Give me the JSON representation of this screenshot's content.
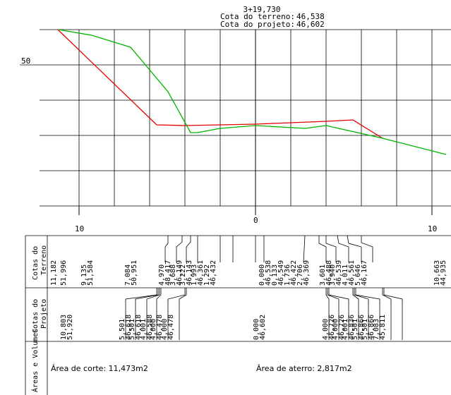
{
  "header": {
    "station": "3+19,730",
    "terrain_label": "Cota do terreno:",
    "terrain_value": "46,538",
    "project_label": "Cota do projeto:",
    "project_value": "46,602"
  },
  "y_axis_label": "50",
  "x_axis_labels": {
    "left": "10",
    "center": "0",
    "right": "10"
  },
  "row_titles": {
    "terrain": [
      "Cotas do",
      "Terreno"
    ],
    "project": [
      "Cotas do",
      "Projeto"
    ],
    "areas": "Áreas e Volumes"
  },
  "terrain_values": [
    "11,182",
    "51,996",
    "9,135",
    "51,584",
    "7,084",
    "50,951",
    "4,970",
    "48,417",
    "3,688",
    "46,149",
    "3,222",
    "46,143",
    "1,993",
    "46,361",
    "1,292",
    "46,432",
    "0,000",
    "46,538",
    "0,133",
    "46,549",
    "1,736",
    "46,422",
    "2,706",
    "46,369",
    "3,601",
    "46,488",
    "3,940",
    "46,539",
    "4,011",
    "46,561",
    "5,646",
    "46,167",
    "10,663",
    "44,935"
  ],
  "project_values": [
    "10,803",
    "51,920",
    "5,501",
    "46,618",
    "5,501",
    "46,618",
    "4,001",
    "46,588",
    "4,000",
    "46,478",
    "4,000",
    "46,478",
    "0,000",
    "46,602",
    "4,000",
    "46,726",
    "4,000",
    "46,726",
    "4,001",
    "46,836",
    "5,501",
    "46,866",
    "5,501",
    "46,866",
    "7,083",
    "45,811"
  ],
  "areas": {
    "cut": "Área de corte: 11,473m2",
    "fill": "Área de aterro: 2,817m2"
  },
  "colors": {
    "terrain_line": "#00b400",
    "project_line": "#e60000",
    "grid": "#000000"
  }
}
